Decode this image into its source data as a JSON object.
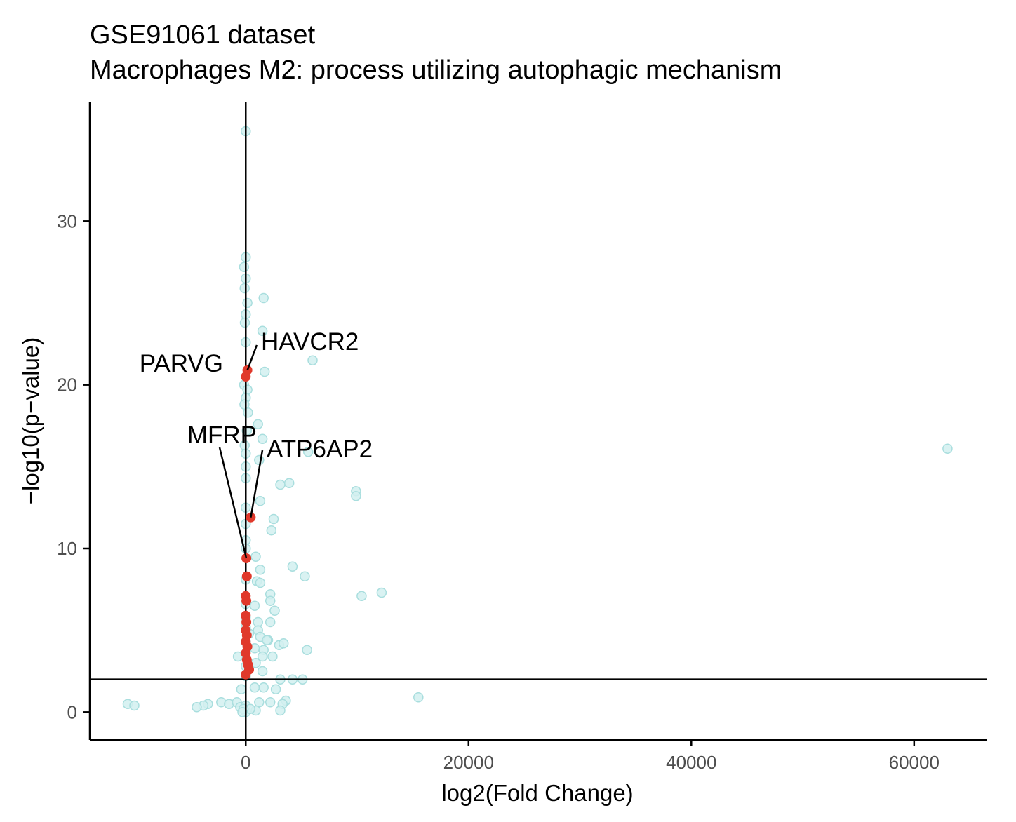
{
  "chart_data": {
    "type": "scatter",
    "title": "GSE91061 dataset",
    "subtitle": "Macrophages M2: process utilizing autophagic mechanism",
    "xlabel": "log2(Fold Change)",
    "ylabel": "−log10(p−value)",
    "xlim": [
      -14000,
      66500
    ],
    "ylim": [
      -1.7,
      37.3
    ],
    "x_ticks": [
      0,
      20000,
      40000,
      60000
    ],
    "x_tick_labels": [
      "0",
      "20000",
      "40000",
      "60000"
    ],
    "y_ticks": [
      0,
      10,
      20,
      30
    ],
    "y_tick_labels": [
      "0",
      "10",
      "20",
      "30"
    ],
    "vline_x": 0,
    "hline_y": 2,
    "grid": false,
    "colors": {
      "background": "#d2f0f0",
      "highlight": "#e0392b",
      "axis": "#000000"
    },
    "series": [
      {
        "role": "background",
        "points": [
          [
            0,
            35.5
          ],
          [
            0,
            27.8
          ],
          [
            -150,
            27.2
          ],
          [
            0,
            26.5
          ],
          [
            -100,
            25.9
          ],
          [
            1600,
            25.3
          ],
          [
            150,
            25.0
          ],
          [
            0,
            24.3
          ],
          [
            -80,
            23.8
          ],
          [
            1500,
            23.3
          ],
          [
            0,
            22.6
          ],
          [
            6000,
            21.5
          ],
          [
            1700,
            20.8
          ],
          [
            -150,
            20.0
          ],
          [
            150,
            19.7
          ],
          [
            0,
            19.2
          ],
          [
            -120,
            18.8
          ],
          [
            200,
            18.3
          ],
          [
            1100,
            17.6
          ],
          [
            100,
            17.2
          ],
          [
            1500,
            16.7
          ],
          [
            -100,
            16.3
          ],
          [
            0,
            15.8
          ],
          [
            5600,
            15.9
          ],
          [
            63000,
            16.1
          ],
          [
            1200,
            15.4
          ],
          [
            0,
            15.0
          ],
          [
            0,
            14.3
          ],
          [
            3100,
            13.9
          ],
          [
            3900,
            14.0
          ],
          [
            9900,
            13.5
          ],
          [
            9900,
            13.2
          ],
          [
            1300,
            12.9
          ],
          [
            0,
            12.5
          ],
          [
            2500,
            11.8
          ],
          [
            0,
            11.5
          ],
          [
            2300,
            11.1
          ],
          [
            0,
            10.5
          ],
          [
            0,
            10.0
          ],
          [
            900,
            9.5
          ],
          [
            4200,
            8.9
          ],
          [
            1300,
            8.7
          ],
          [
            5300,
            8.3
          ],
          [
            0,
            8.1
          ],
          [
            1000,
            8.0
          ],
          [
            1300,
            7.9
          ],
          [
            12200,
            7.3
          ],
          [
            10400,
            7.1
          ],
          [
            2200,
            7.2
          ],
          [
            2200,
            6.8
          ],
          [
            0,
            6.6
          ],
          [
            800,
            6.5
          ],
          [
            2600,
            6.2
          ],
          [
            0,
            5.8
          ],
          [
            1100,
            5.5
          ],
          [
            2200,
            5.5
          ],
          [
            0,
            5.2
          ],
          [
            1100,
            5.0
          ],
          [
            300,
            4.8
          ],
          [
            1300,
            4.6
          ],
          [
            2000,
            4.4
          ],
          [
            1900,
            4.4
          ],
          [
            0,
            4.3
          ],
          [
            3000,
            4.1
          ],
          [
            3400,
            4.2
          ],
          [
            800,
            3.9
          ],
          [
            1600,
            3.8
          ],
          [
            5500,
            3.8
          ],
          [
            -700,
            3.4
          ],
          [
            1500,
            3.4
          ],
          [
            2400,
            3.4
          ],
          [
            900,
            3.0
          ],
          [
            0,
            2.8
          ],
          [
            1500,
            2.5
          ],
          [
            0,
            2.2
          ],
          [
            3100,
            2.0
          ],
          [
            4200,
            2.0
          ],
          [
            5100,
            2.0
          ],
          [
            -400,
            1.4
          ],
          [
            800,
            1.5
          ],
          [
            1600,
            1.5
          ],
          [
            2700,
            1.4
          ],
          [
            15500,
            0.9
          ],
          [
            3600,
            0.7
          ],
          [
            3300,
            0.5
          ],
          [
            1200,
            0.6
          ],
          [
            2200,
            0.6
          ],
          [
            -2200,
            0.6
          ],
          [
            -3400,
            0.5
          ],
          [
            -3800,
            0.4
          ],
          [
            -4400,
            0.3
          ],
          [
            -10600,
            0.5
          ],
          [
            -10000,
            0.4
          ],
          [
            -1500,
            0.5
          ],
          [
            -800,
            0.6
          ],
          [
            -500,
            0.3
          ],
          [
            0,
            0.0
          ],
          [
            900,
            0.1
          ],
          [
            3100,
            0.1
          ],
          [
            0,
            0.4
          ],
          [
            400,
            0.2
          ],
          [
            -200,
            0.2
          ],
          [
            -300,
            0.0
          ]
        ]
      },
      {
        "role": "highlight",
        "points": [
          [
            150,
            20.9
          ],
          [
            0,
            20.5
          ],
          [
            450,
            11.9
          ],
          [
            50,
            9.4
          ],
          [
            100,
            8.3
          ],
          [
            0,
            7.1
          ],
          [
            50,
            6.8
          ],
          [
            0,
            5.9
          ],
          [
            50,
            5.5
          ],
          [
            0,
            5.0
          ],
          [
            100,
            4.7
          ],
          [
            0,
            4.3
          ],
          [
            150,
            4.0
          ],
          [
            0,
            3.6
          ],
          [
            100,
            3.2
          ],
          [
            200,
            2.9
          ],
          [
            300,
            2.6
          ],
          [
            0,
            2.3
          ]
        ]
      }
    ],
    "labels": [
      {
        "text": "HAVCR2",
        "x": 150,
        "y": 20.9
      },
      {
        "text": "PARVG",
        "x": 0,
        "y": 20.5
      },
      {
        "text": "ATP6AP2",
        "x": 450,
        "y": 11.9
      },
      {
        "text": "MFRP",
        "x": 50,
        "y": 9.4
      }
    ]
  }
}
